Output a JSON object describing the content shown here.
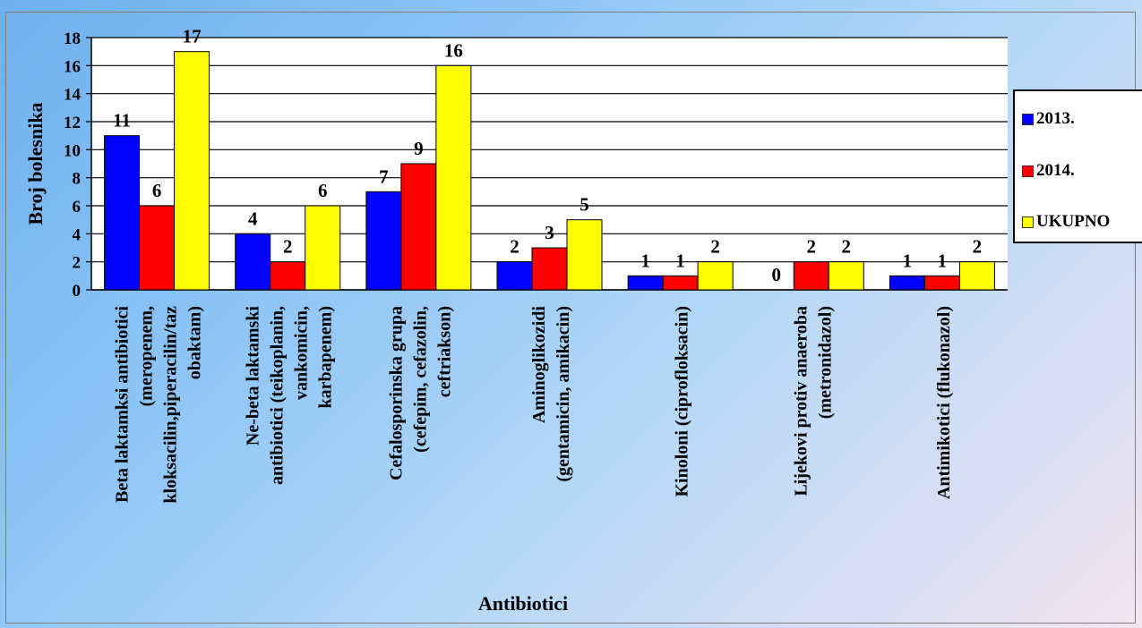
{
  "chart_data": {
    "type": "bar",
    "xlabel": "Antibiotici",
    "ylabel": "Broj bolesnika",
    "ylim": [
      0,
      18
    ],
    "yticks": [
      "0",
      "2",
      "4",
      "6",
      "8",
      "10",
      "12",
      "14",
      "16",
      "18"
    ],
    "grid": true,
    "legend_position": "right",
    "categories": [
      [
        "Beta laktamksi antibiotici",
        "(meropenem,",
        "kloksacilin,piperacilin/taz",
        "obaktam)"
      ],
      [
        "Ne-beta laktamski",
        "antibiotici (teikoplanin,",
        "vankomicin,",
        "karbapenem)"
      ],
      [
        "Cefalosporinska grupa",
        "(cefepim, cefazolin,",
        "ceftriakson)"
      ],
      [
        "Aminoglikozidi",
        "(gentamicin, amikacin)"
      ],
      [
        "Kinoloni (ciprofloksacin)"
      ],
      [
        "Lijekovi protiv anaeroba",
        "(metronidazol)"
      ],
      [
        "Antimikotici (flukonazol)"
      ]
    ],
    "series": [
      {
        "name": "2013.",
        "color": "#0000ff",
        "values": [
          11,
          4,
          7,
          2,
          1,
          0,
          1
        ]
      },
      {
        "name": "2014.",
        "color": "#ff0000",
        "values": [
          6,
          2,
          9,
          3,
          1,
          2,
          1
        ]
      },
      {
        "name": "UKUPNO",
        "color": "#ffff00",
        "values": [
          17,
          6,
          16,
          5,
          2,
          2,
          2
        ]
      }
    ]
  }
}
